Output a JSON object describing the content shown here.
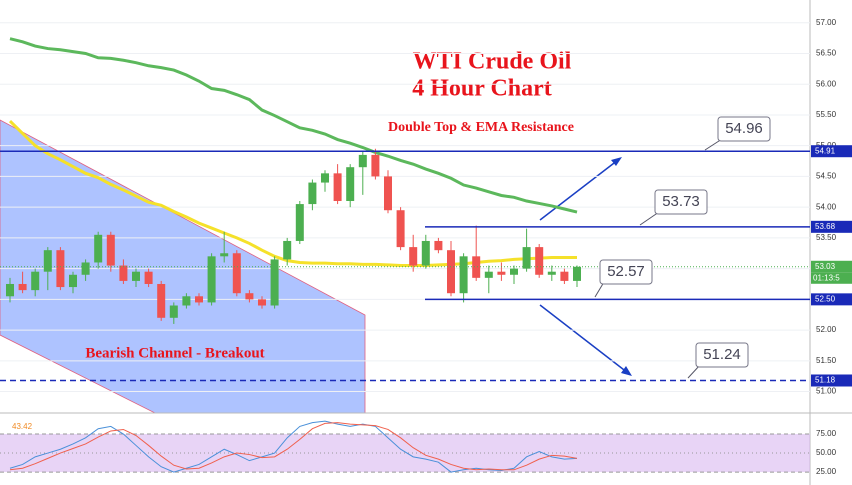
{
  "chart_data": [
    {
      "type": "candlestick",
      "title": "WTI Crude Oil",
      "subtitle": "4 Hour Chart",
      "annotations": [
        "Double Top & EMA Resistance",
        "Bearish Channel - Breakout"
      ],
      "open": [
        52.55,
        52.75,
        52.65,
        52.95,
        53.3,
        52.7,
        52.9,
        53.1,
        53.55,
        53.05,
        52.8,
        52.95,
        52.75,
        52.2,
        52.4,
        52.55,
        52.45,
        53.2,
        53.25,
        52.6,
        52.5,
        52.4,
        53.15,
        53.45,
        54.05,
        54.4,
        54.55,
        54.1,
        54.65,
        54.85,
        54.5,
        53.95,
        53.35,
        53.05,
        53.45,
        53.3,
        52.6,
        53.2,
        52.85,
        52.95,
        52.9,
        53.0,
        53.35,
        52.9,
        52.95,
        52.8
      ],
      "high": [
        52.85,
        52.95,
        53.0,
        53.35,
        53.35,
        52.95,
        53.15,
        53.6,
        53.6,
        53.15,
        53.0,
        53.0,
        52.8,
        52.45,
        52.6,
        52.6,
        53.25,
        53.6,
        53.3,
        52.65,
        52.55,
        53.2,
        53.5,
        54.1,
        54.45,
        54.6,
        54.7,
        54.7,
        54.9,
        54.95,
        54.6,
        54.0,
        53.55,
        53.55,
        53.5,
        53.45,
        53.25,
        53.7,
        53.05,
        53.1,
        53.05,
        53.65,
        53.4,
        53.05,
        53.0,
        53.05
      ],
      "low": [
        52.45,
        52.6,
        52.55,
        52.65,
        52.65,
        52.6,
        52.8,
        53.0,
        52.95,
        52.75,
        52.7,
        52.7,
        52.15,
        52.1,
        52.35,
        52.4,
        52.4,
        53.1,
        52.55,
        52.45,
        52.35,
        52.35,
        53.05,
        53.4,
        53.95,
        54.25,
        54.05,
        54.0,
        54.2,
        54.45,
        53.9,
        53.3,
        52.95,
        53.0,
        53.25,
        52.55,
        52.45,
        52.8,
        52.6,
        52.8,
        52.75,
        52.95,
        52.85,
        52.8,
        52.75,
        52.7
      ],
      "close": [
        52.75,
        52.65,
        52.95,
        53.3,
        52.7,
        52.9,
        53.1,
        53.55,
        53.05,
        52.8,
        52.95,
        52.75,
        52.2,
        52.4,
        52.55,
        52.45,
        53.2,
        53.25,
        52.6,
        52.5,
        52.4,
        53.15,
        53.45,
        54.05,
        54.4,
        54.55,
        54.1,
        54.65,
        54.85,
        54.5,
        53.95,
        53.35,
        53.05,
        53.45,
        53.3,
        52.6,
        53.2,
        52.85,
        52.95,
        52.9,
        53.0,
        53.35,
        52.9,
        52.95,
        52.8,
        53.03
      ],
      "up_color": "#4caf50",
      "down_color": "#ef5350",
      "series": [
        {
          "color": "#5cb85c",
          "values": [
            56.74,
            56.69,
            56.62,
            56.58,
            56.56,
            56.53,
            56.5,
            56.43,
            56.42,
            56.39,
            56.35,
            56.3,
            56.27,
            56.23,
            56.15,
            56.05,
            55.93,
            55.9,
            55.83,
            55.75,
            55.58,
            55.49,
            55.39,
            55.29,
            55.25,
            55.19,
            55.1,
            55.04,
            54.97,
            54.89,
            54.83,
            54.76,
            54.7,
            54.62,
            54.55,
            54.47,
            54.36,
            54.31,
            54.25,
            54.19,
            54.16,
            54.1,
            54.06,
            54.02,
            53.97,
            53.92
          ]
        },
        {
          "color": "#f5e12a",
          "values": [
            55.4,
            55.2,
            55.0,
            54.87,
            54.77,
            54.66,
            54.55,
            54.48,
            54.37,
            54.28,
            54.18,
            54.08,
            54.03,
            53.93,
            53.84,
            53.74,
            53.66,
            53.58,
            53.5,
            53.41,
            53.3,
            53.2,
            53.13,
            53.1,
            53.09,
            53.09,
            53.08,
            53.08,
            53.07,
            53.07,
            53.06,
            53.05,
            53.05,
            53.05,
            53.06,
            53.07,
            53.08,
            53.1,
            53.12,
            53.13,
            53.15,
            53.16,
            53.17,
            53.18,
            53.18,
            53.18
          ]
        }
      ],
      "levels": [
        {
          "value": 54.91,
          "style": "solid",
          "span": "full"
        },
        {
          "value": 53.68,
          "style": "solid",
          "span": "partial"
        },
        {
          "value": 52.5,
          "label": "52.50",
          "style": "solid",
          "span": "partial"
        },
        {
          "value": 51.18,
          "style": "dashed",
          "span": "full"
        }
      ],
      "callouts": [
        54.96,
        53.73,
        52.57,
        51.24
      ],
      "last_price": 53.03,
      "countdown": "01:13:5",
      "ylim": [
        50.7,
        57.37
      ],
      "yticks": [
        {
          "value": 51,
          "label": "51.00"
        },
        {
          "value": 51.5,
          "label": "51.50"
        },
        {
          "value": 52,
          "label": "52.00"
        },
        {
          "value": 52.5,
          "label": "52.50"
        },
        {
          "value": 53,
          "label": "53.00"
        },
        {
          "value": 53.5,
          "label": "53.50"
        },
        {
          "value": 54,
          "label": "54.00"
        },
        {
          "value": 54.5,
          "label": "54.50"
        },
        {
          "value": 55,
          "label": "55.00"
        },
        {
          "value": 55.5,
          "label": "55.50"
        },
        {
          "value": 56,
          "label": "56.00"
        },
        {
          "value": 56.5,
          "label": "56.50"
        },
        {
          "value": 57,
          "label": "57.00"
        }
      ],
      "grid": true
    },
    {
      "type": "line",
      "value_label": 43.42,
      "band": [
        25,
        75
      ],
      "series": [
        {
          "color": "#4a90d9",
          "values": [
            30,
            35,
            45,
            50,
            55,
            62,
            70,
            82,
            85,
            75,
            60,
            45,
            32,
            25,
            30,
            35,
            45,
            55,
            48,
            40,
            45,
            50,
            70,
            85,
            90,
            92,
            88,
            85,
            88,
            85,
            70,
            55,
            45,
            42,
            38,
            25,
            28,
            30,
            28,
            27,
            30,
            45,
            52,
            45,
            42,
            43
          ]
        },
        {
          "color": "#f0604d",
          "values": [
            28,
            30,
            36,
            43,
            50,
            56,
            62,
            71,
            79,
            81,
            73,
            60,
            46,
            34,
            29,
            30,
            37,
            45,
            50,
            48,
            44,
            45,
            55,
            68,
            82,
            89,
            90,
            88,
            87,
            86,
            81,
            70,
            57,
            47,
            42,
            35,
            30,
            28,
            29,
            28,
            28,
            34,
            42,
            47,
            46,
            43
          ]
        }
      ],
      "ylim": [
        8,
        100
      ],
      "yticks": [
        {
          "value": 25,
          "label": "25.00"
        },
        {
          "value": 50,
          "label": "50.00"
        },
        {
          "value": 75,
          "label": "75.00"
        }
      ]
    }
  ]
}
